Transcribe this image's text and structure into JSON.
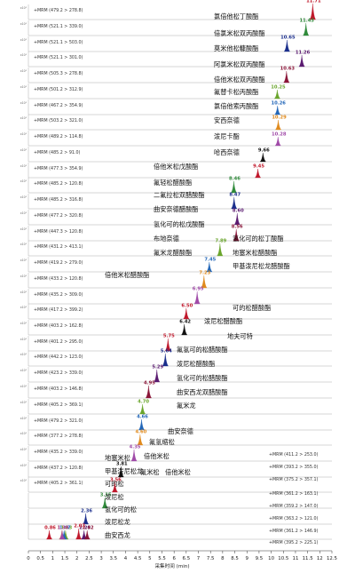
{
  "chart_data": {
    "type": "line",
    "xlabel": "采集时间 (min)",
    "xlim": [
      0,
      12.5
    ],
    "x_ticks": [
      "0",
      "0.5",
      "1",
      "1.5",
      "2",
      "2.5",
      "3",
      "3.5",
      "4",
      "4.5",
      "5",
      "5.5",
      "6",
      "6.5",
      "7",
      "7.5",
      "8",
      "8.5",
      "9",
      "9.5",
      "10",
      "10.5",
      "11",
      "11.5",
      "12",
      "12.5"
    ],
    "left_transitions": [
      "+MRM (479.2 > 278.8)",
      "+MRM (521.1 > 339.0)",
      "+MRM (521.1 > 503.0)",
      "+MRM (521.1 > 301.0)",
      "+MRM (505.3 > 278.8)",
      "+MRM (501.2 > 312.9)",
      "+MRM (467.2 > 354.9)",
      "+MRM (503.2 > 321.0)",
      "+MRM (489.2 > 114.8)",
      "+MRM (485.2 > 91.0)",
      "+MRM (477.3 > 354.9)",
      "+MRM (485.2 > 120.8)",
      "+MRM (485.2 > 316.8)",
      "+MRM (477.2 > 320.8)",
      "+MRM (447.3 > 120.8)",
      "+MRM (431.2 > 413.1)",
      "+MRM (419.2 > 279.0)",
      "+MRM (433.2 > 120.8)",
      "+MRM (435.2 > 309.0)",
      "+MRM (417.2 > 399.2)",
      "+MRM (403.2 > 162.8)",
      "+MRM (401.2 > 295.0)",
      "+MRM (442.2 > 123.0)",
      "+MRM (423.2 > 339.0)",
      "+MRM (403.2 > 146.8)",
      "+MRM (405.2 > 369.1)",
      "+MRM (479.2 > 321.0)",
      "+MRM (377.2 > 278.8)",
      "+MRM (435.2 > 339.0)",
      "+MRM (437.2 > 120.8)",
      "+MRM (405.2 > 361.1)"
    ],
    "right_transitions": [
      "+MRM (411.2 > 253.0)",
      "+MRM (393.2 > 355.0)",
      "+MRM (375.2 > 357.1)",
      "+MRM (361.2 > 163.1)",
      "+MRM (359.2 > 147.0)",
      "+MRM (363.2 > 121.0)",
      "+MRM (361.2 > 146.9)",
      "+MRM (395.2 > 225.1)"
    ],
    "series": [
      {
        "name": "氯倍他松丁酸酯",
        "rt": 11.71,
        "color": "#c0182b"
      },
      {
        "name": "倍氯米松双丙酸酯",
        "rt": 11.43,
        "color": "#2f8a3a"
      },
      {
        "name": "莫米他松糠酸酯",
        "rt": 10.65,
        "color": "#1a2e8c"
      },
      {
        "name": "阿氯米松双丙酸酯",
        "rt": 11.26,
        "color": "#5a1a70"
      },
      {
        "name": "倍他米松双丙酸酯",
        "rt": 10.63,
        "color": "#8a1538"
      },
      {
        "name": "氟替卡松丙酸酯",
        "rt": 10.25,
        "color": "#6aa52c"
      },
      {
        "name": "氯倍他索丙酸酯",
        "rt": 10.26,
        "color": "#2266b8"
      },
      {
        "name": "安西奈德",
        "rt": 10.29,
        "color": "#e08a1c"
      },
      {
        "name": "泼尼卡酯",
        "rt": 10.28,
        "color": "#a04aa8"
      },
      {
        "name": "哈西奈德",
        "rt": 9.66,
        "color": "#111111"
      },
      {
        "name": "",
        "rt": 9.45,
        "color": "#c0182b"
      },
      {
        "name": "倍他米松戊酸酯",
        "rt": 8.46,
        "color": "#2f8a3a"
      },
      {
        "name": "氟轻松醋酸酯",
        "rt": 8.47,
        "color": "#1a2e8c"
      },
      {
        "name": "二氟拉松双醋酸酯",
        "rt": 8.6,
        "color": "#5a1a70"
      },
      {
        "name": "曲安奈德醋酸酯",
        "rt": 8.56,
        "color": "#8a1538"
      },
      {
        "name": "氢化可的松戊酸酯",
        "rt": 7.89,
        "color": "#6aa52c"
      },
      {
        "name": "布地奈德",
        "rt": 7.45,
        "color": "#2266b8"
      },
      {
        "name": "氟米龙醋酸酯",
        "rt": 7.23,
        "color": "#e08a1c"
      },
      {
        "name": "氢化可的松丁酸酯",
        "rt": 6.95,
        "color": "#a04aa8"
      },
      {
        "name": "倍他米松醋酸酯",
        "rt": 6.5,
        "color": "#c0182b"
      },
      {
        "name": "地塞米松醋酸酯",
        "rt": 6.42,
        "color": "#111111"
      },
      {
        "name": "甲基泼尼松龙醋酸酯",
        "rt": 5.75,
        "color": "#c0182b"
      },
      {
        "name": "可的松醋酸酯",
        "rt": 5.64,
        "color": "#1a2e8c"
      },
      {
        "name": "泼尼松醋酸酯",
        "rt": 5.29,
        "color": "#5a1a70"
      },
      {
        "name": "地夫可特",
        "rt": 4.95,
        "color": "#8a1538"
      },
      {
        "name": "氟氢可的松醋酸酯",
        "rt": 4.7,
        "color": "#6aa52c"
      },
      {
        "name": "泼尼松醋酸酯",
        "rt": 4.66,
        "color": "#2266b8"
      },
      {
        "name": "氢化可的松醋酸酯",
        "rt": 4.6,
        "color": "#e08a1c"
      },
      {
        "name": "曲安西龙双醋酸酯",
        "rt": 4.35,
        "color": "#a04aa8"
      },
      {
        "name": "氟米龙",
        "rt": 3.81,
        "color": "#111111"
      },
      {
        "name": "曲安奈德",
        "rt": 3.56,
        "color": "#c0182b"
      },
      {
        "name": "氟氢缩松",
        "rt": 3.15,
        "color": "#2f8a3a"
      },
      {
        "name": "倍他米松",
        "rt": 2.36,
        "color": "#1a2e8c"
      },
      {
        "name": "氟米松",
        "rt": 2.29,
        "color": "#5a1a70"
      },
      {
        "name": "地塞米松",
        "rt": 2.42,
        "color": "#8a1538"
      },
      {
        "name": "甲基泼尼松龙",
        "rt": 2.07,
        "color": "#c0182b"
      },
      {
        "name": "可的松",
        "rt": 1.53,
        "color": "#6aa52c"
      },
      {
        "name": "泼尼松",
        "rt": 1.47,
        "color": "#2266b8"
      },
      {
        "name": "氢化可的松",
        "rt": 1.38,
        "color": "#e08a1c"
      },
      {
        "name": "泼尼松龙",
        "rt": 1.39,
        "color": "#a04aa8"
      },
      {
        "name": "曲安西龙",
        "rt": 0.86,
        "color": "#c0182b"
      }
    ],
    "extra_label": "倍他米松"
  }
}
